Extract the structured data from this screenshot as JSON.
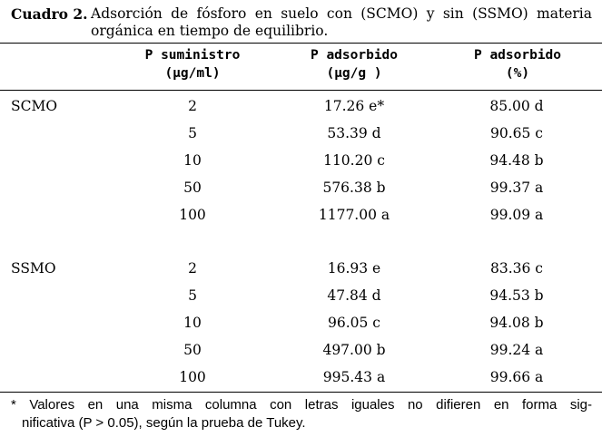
{
  "caption": {
    "label": "Cuadro 2.",
    "line1": "Adsorción de fósforo en suelo con (SCMO) y sin (SSMO) materia",
    "line2": "orgánica en tiempo de equilibrio."
  },
  "columns": [
    {
      "line1": "P suministro",
      "line2": "(μg/ml)"
    },
    {
      "line1": "P adsorbido",
      "line2": "(μg/g )"
    },
    {
      "line1": "P adsorbido",
      "line2": "(%)"
    }
  ],
  "groups": [
    {
      "name": "SCMO",
      "rows": [
        {
          "supply": "2",
          "adsorbed": "17.26 e*",
          "percent": "85.00 d"
        },
        {
          "supply": "5",
          "adsorbed": "53.39 d",
          "percent": "90.65 c"
        },
        {
          "supply": "10",
          "adsorbed": "110.20 c",
          "percent": "94.48 b"
        },
        {
          "supply": "50",
          "adsorbed": "576.38 b",
          "percent": "99.37 a"
        },
        {
          "supply": "100",
          "adsorbed": "1177.00 a",
          "percent": "99.09 a"
        }
      ]
    },
    {
      "name": "SSMO",
      "rows": [
        {
          "supply": "2",
          "adsorbed": "16.93 e",
          "percent": "83.36 c"
        },
        {
          "supply": "5",
          "adsorbed": "47.84 d",
          "percent": "94.53 b"
        },
        {
          "supply": "10",
          "adsorbed": "96.05 c",
          "percent": "94.08 b"
        },
        {
          "supply": "50",
          "adsorbed": "497.00 b",
          "percent": "99.24 a"
        },
        {
          "supply": "100",
          "adsorbed": "995.43 a",
          "percent": "99.66 a"
        }
      ]
    }
  ],
  "footnote": {
    "line1": "* Valores en una misma columna con letras iguales no difieren en forma sig-",
    "line2": "nificativa (P > 0.05), según la prueba de Tukey."
  }
}
